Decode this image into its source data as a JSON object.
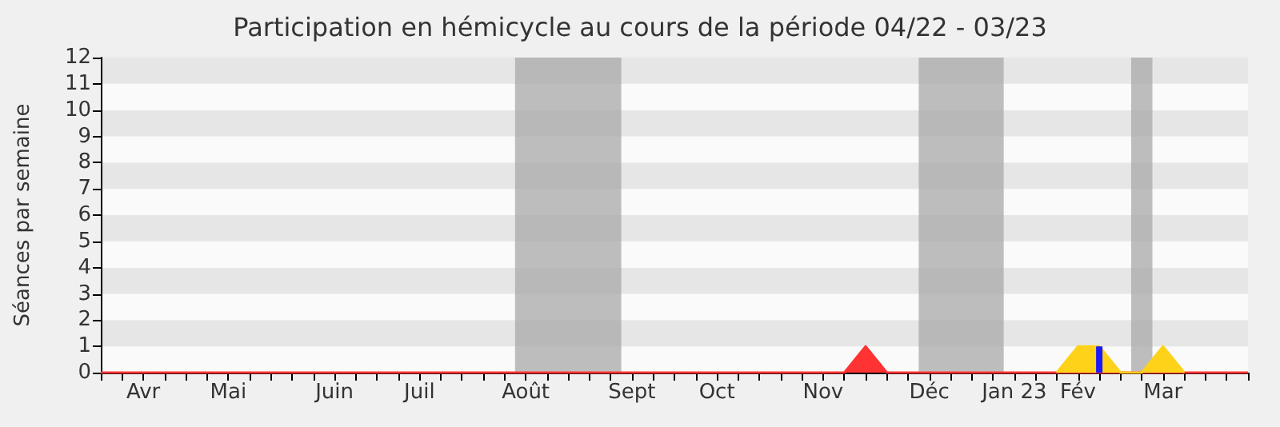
{
  "chart_data": {
    "type": "area",
    "title": "Participation en hémicycle au cours de la période 04/22 - 03/23",
    "ylabel": "Séances par semaine",
    "categories": [
      null,
      null,
      "Avr",
      null,
      null,
      null,
      "Mai",
      null,
      null,
      null,
      null,
      "Juin",
      null,
      null,
      null,
      "Juil",
      null,
      null,
      null,
      null,
      "Août",
      null,
      null,
      null,
      null,
      "Sept",
      null,
      null,
      null,
      "Oct",
      null,
      null,
      null,
      null,
      "Nov",
      null,
      null,
      null,
      null,
      "Déc",
      null,
      null,
      null,
      "Jan 23",
      null,
      null,
      "Fév",
      null,
      null,
      null,
      "Mar",
      null,
      null,
      null,
      null
    ],
    "ylim": [
      0,
      12
    ],
    "yticks": [
      0,
      1,
      2,
      3,
      4,
      5,
      6,
      7,
      8,
      9,
      10,
      11,
      12
    ],
    "marker": "none",
    "series": [
      {
        "color": "#ff3333",
        "values": [
          0,
          0,
          0,
          0,
          0,
          0,
          0,
          0,
          0,
          0,
          0,
          0,
          0,
          0,
          0,
          0,
          0,
          0,
          0,
          0,
          0,
          0,
          0,
          0,
          0,
          0,
          0,
          0,
          0,
          0,
          0,
          0,
          0,
          0,
          0,
          0,
          1,
          0,
          0,
          0,
          0,
          0,
          0,
          0,
          0,
          0,
          0,
          0,
          0,
          0,
          0,
          0,
          0,
          0,
          0
        ]
      },
      {
        "color": "#ffd21a",
        "values": [
          null,
          null,
          null,
          null,
          null,
          null,
          null,
          null,
          null,
          null,
          null,
          null,
          null,
          null,
          null,
          null,
          null,
          null,
          null,
          null,
          null,
          null,
          null,
          null,
          null,
          null,
          null,
          null,
          null,
          null,
          null,
          null,
          null,
          null,
          null,
          null,
          null,
          null,
          null,
          null,
          null,
          null,
          null,
          null,
          null,
          0,
          1,
          1,
          0,
          0,
          1,
          0,
          null,
          null,
          null
        ]
      },
      {
        "type": "bar",
        "color": "#1a1aff",
        "values": [
          0,
          0,
          0,
          0,
          0,
          0,
          0,
          0,
          0,
          0,
          0,
          0,
          0,
          0,
          0,
          0,
          0,
          0,
          0,
          0,
          0,
          0,
          0,
          0,
          0,
          0,
          0,
          0,
          0,
          0,
          0,
          0,
          0,
          0,
          0,
          0,
          0,
          0,
          0,
          0,
          0,
          0,
          0,
          0,
          0,
          0,
          0,
          1,
          0,
          0,
          0,
          0,
          0,
          0,
          0
        ]
      }
    ]
  }
}
